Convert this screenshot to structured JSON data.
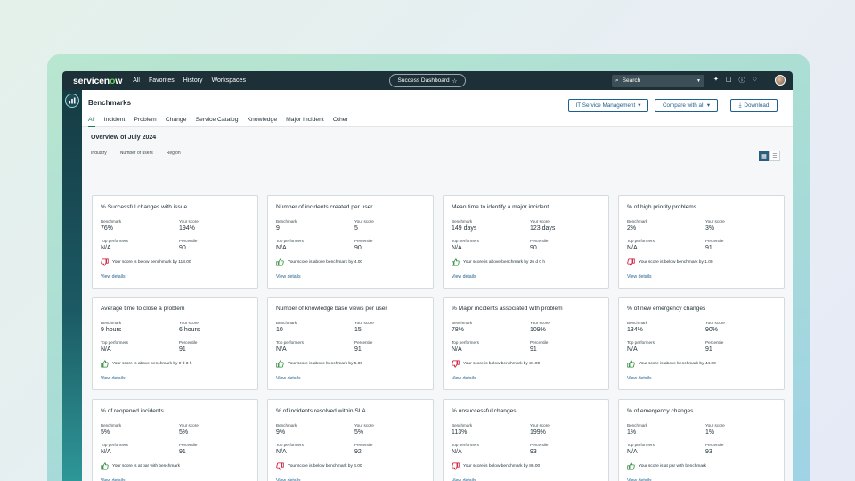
{
  "topbar": {
    "logo_a": "servicen",
    "logo_o": "o",
    "logo_b": "w",
    "nav": [
      "All",
      "Favorites",
      "History",
      "Workspaces"
    ],
    "dashboard": "Success Dashboard",
    "search": "Search"
  },
  "header": {
    "title": "Benchmarks",
    "tabs": [
      "All",
      "Incident",
      "Problem",
      "Change",
      "Service Catalog",
      "Knowledge",
      "Major Incident",
      "Other"
    ],
    "active_tab": "All",
    "itsm_button": "IT Service Management",
    "compare_button": "Compare with all",
    "download_button": "Download"
  },
  "overview": {
    "title": "Overview of July 2024",
    "filters": [
      "Industry",
      "Number of users",
      "Region"
    ]
  },
  "labels": {
    "benchmark": "Benchmark",
    "your_score": "Your score",
    "top_performers": "Top performers",
    "percentile": "Percentile",
    "view_details": "View details"
  },
  "colors": {
    "positive": "#2e8b3e",
    "negative": "#c8102e",
    "accent": "#1f7a57",
    "link": "#1f5f8c"
  },
  "cards": [
    {
      "title": "% Successful changes with issue",
      "benchmark": "76%",
      "score": "194%",
      "top": "N/A",
      "percentile": "90",
      "status": "down",
      "message": "Your score is below benchmark by 118.00"
    },
    {
      "title": "Number of incidents created per user",
      "benchmark": "9",
      "score": "5",
      "top": "N/A",
      "percentile": "90",
      "status": "up",
      "message": "Your score is above benchmark by 4.00"
    },
    {
      "title": "Mean time to identify a major incident",
      "benchmark": "149 days",
      "score": "123 days",
      "top": "N/A",
      "percentile": "90",
      "status": "up",
      "message": "Your score is above benchmark by 26 d 0 h"
    },
    {
      "title": "% of high priority problems",
      "benchmark": "2%",
      "score": "3%",
      "top": "N/A",
      "percentile": "91",
      "status": "down",
      "message": "Your score is below benchmark by 1.00"
    },
    {
      "title": "Average time to close a problem",
      "benchmark": "9 hours",
      "score": "6 hours",
      "top": "N/A",
      "percentile": "91",
      "status": "up",
      "message": "Your score is above benchmark by 0 d 3 h"
    },
    {
      "title": "Number of knowledge base views per user",
      "benchmark": "10",
      "score": "15",
      "top": "N/A",
      "percentile": "91",
      "status": "up",
      "message": "Your score is above benchmark by 5.00"
    },
    {
      "title": "% Major incidents associated with problem",
      "benchmark": "78%",
      "score": "109%",
      "top": "N/A",
      "percentile": "91",
      "status": "down",
      "message": "Your score is below benchmark by 31.00"
    },
    {
      "title": "% of new emergency changes",
      "benchmark": "134%",
      "score": "90%",
      "top": "N/A",
      "percentile": "91",
      "status": "up",
      "message": "Your score is above benchmark by 44.00"
    },
    {
      "title": "% of reopened incidents",
      "benchmark": "5%",
      "score": "5%",
      "top": "N/A",
      "percentile": "91",
      "status": "up",
      "message": "Your score is at par with benchmark"
    },
    {
      "title": "% of incidents resolved within SLA",
      "benchmark": "9%",
      "score": "5%",
      "top": "N/A",
      "percentile": "92",
      "status": "down",
      "message": "Your score is below benchmark by 4.00"
    },
    {
      "title": "% unsuccessful changes",
      "benchmark": "113%",
      "score": "199%",
      "top": "N/A",
      "percentile": "93",
      "status": "down",
      "message": "Your score is below benchmark by 86.00"
    },
    {
      "title": "% of emergency changes",
      "benchmark": "1%",
      "score": "1%",
      "top": "N/A",
      "percentile": "93",
      "status": "up",
      "message": "Your score is at par with benchmark"
    }
  ]
}
